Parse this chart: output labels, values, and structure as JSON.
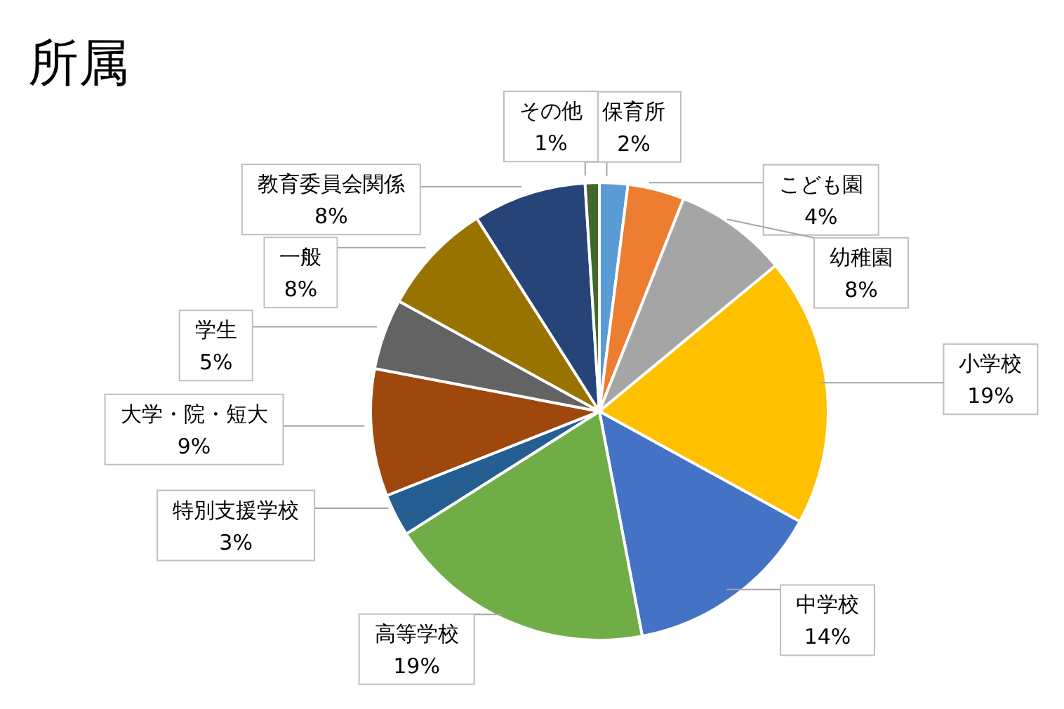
{
  "chart_data": {
    "type": "pie",
    "title": "所属",
    "categories": [
      "保育所",
      "こども園",
      "幼稚園",
      "小学校",
      "中学校",
      "高等学校",
      "特別支援学校",
      "大学・院・短大",
      "学生",
      "一般",
      "教育委員会関係",
      "その他"
    ],
    "values": [
      2,
      4,
      8,
      19,
      14,
      19,
      3,
      9,
      5,
      8,
      8,
      1
    ],
    "value_labels": [
      "2%",
      "4%",
      "8%",
      "19%",
      "14%",
      "19%",
      "3%",
      "9%",
      "5%",
      "8%",
      "8%",
      "1%"
    ],
    "colors": [
      "#5b9bd5",
      "#ed7d31",
      "#a5a5a5",
      "#ffc000",
      "#4472c4",
      "#70ad47",
      "#255e91",
      "#9e480e",
      "#636363",
      "#997300",
      "#264478",
      "#43682b"
    ]
  }
}
